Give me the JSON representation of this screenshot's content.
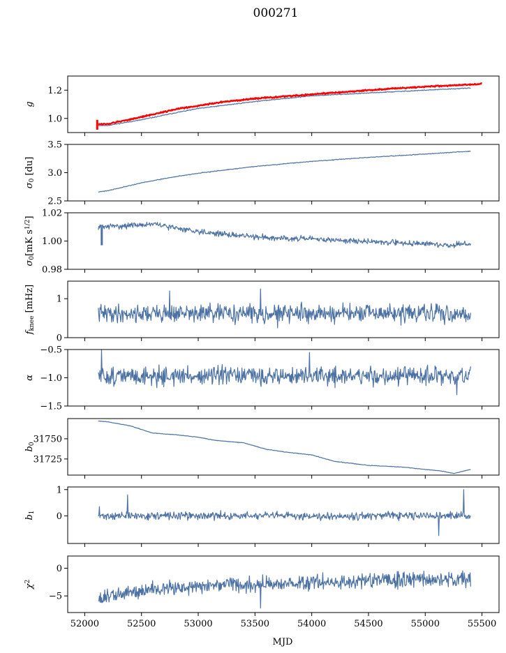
{
  "figure": {
    "title": "000271",
    "xlabel": "MJD"
  },
  "chart_data": [
    {
      "type": "line",
      "ylabel_tex": "g",
      "ylabel": [
        {
          "t": "g",
          "i": true
        }
      ],
      "xlim": [
        51850,
        55650
      ],
      "ylim": [
        0.9,
        1.3
      ],
      "yticks": [
        1.0,
        1.2
      ],
      "ytick_labels": [
        "1.0",
        "1.2"
      ],
      "series": [
        {
          "color": "#4c72a4",
          "x": [
            52120,
            52200,
            52500,
            52800,
            53000,
            53200,
            53500,
            54000,
            54500,
            55000,
            55400
          ],
          "y": [
            0.95,
            0.95,
            0.99,
            1.04,
            1.07,
            1.09,
            1.12,
            1.16,
            1.18,
            1.2,
            1.215
          ],
          "noise": 0.002,
          "seed": 11
        },
        {
          "color": "#ff0000",
          "x": [
            52120,
            52200,
            52500,
            52800,
            53000,
            53200,
            53500,
            54000,
            54500,
            55000,
            55400,
            55500
          ],
          "y": [
            0.96,
            0.96,
            1.01,
            1.065,
            1.09,
            1.115,
            1.14,
            1.17,
            1.2,
            1.225,
            1.24,
            1.245
          ],
          "noise": 0.003,
          "seed": 12,
          "spike": {
            "x": 52110,
            "y0": 0.92,
            "y1": 0.99
          }
        }
      ]
    },
    {
      "type": "line",
      "ylabel": [
        {
          "t": "σ",
          "i": true
        },
        {
          "t": "0",
          "sub": true
        },
        {
          "t": " [du]"
        }
      ],
      "xlim": [
        51850,
        55650
      ],
      "ylim": [
        2.5,
        3.5
      ],
      "yticks": [
        2.5,
        3.0,
        3.5
      ],
      "ytick_labels": [
        "2.5",
        "3.0",
        "3.5"
      ],
      "series": [
        {
          "color": "#4c72a4",
          "x": [
            52120,
            52200,
            52500,
            52800,
            53000,
            53500,
            54000,
            54500,
            55000,
            55400
          ],
          "y": [
            2.66,
            2.68,
            2.82,
            2.93,
            2.99,
            3.11,
            3.2,
            3.27,
            3.33,
            3.38
          ],
          "noise": 0.004,
          "seed": 21
        }
      ]
    },
    {
      "type": "line",
      "ylabel": [
        {
          "t": "σ",
          "i": true
        },
        {
          "t": "0",
          "sub": true
        },
        {
          "t": "[mK s"
        },
        {
          "t": "1/2",
          "sup": true
        },
        {
          "t": "]"
        }
      ],
      "xlim": [
        51850,
        55650
      ],
      "ylim": [
        0.98,
        1.02
      ],
      "yticks": [
        0.98,
        1.0,
        1.02
      ],
      "ytick_labels": [
        "0.98",
        "1.00",
        "1.02"
      ],
      "series": [
        {
          "color": "#4c72a4",
          "x": [
            52120,
            52400,
            52600,
            52900,
            53200,
            53500,
            53800,
            54100,
            54400,
            54700,
            55000,
            55200,
            55400
          ],
          "y": [
            1.01,
            1.011,
            1.012,
            1.008,
            1.005,
            1.003,
            1.002,
            1.001,
            1.0,
            0.999,
            0.998,
            0.997,
            0.998
          ],
          "noise": 0.0012,
          "seed": 31,
          "spike": {
            "x": 52150,
            "y0": 0.997,
            "y1": 1.01
          }
        }
      ]
    },
    {
      "type": "line",
      "ylabel": [
        {
          "t": "f",
          "i": true
        },
        {
          "t": "knee",
          "sub": true
        },
        {
          "t": " [mHz]"
        }
      ],
      "xlim": [
        51850,
        55650
      ],
      "ylim": [
        0,
        1.45
      ],
      "yticks": [
        0,
        1
      ],
      "ytick_labels": [
        "0",
        "1"
      ],
      "series": [
        {
          "color": "#4c72a4",
          "x": [
            52120,
            55400
          ],
          "y": [
            0.62,
            0.62
          ],
          "noise": 0.14,
          "seed": 41,
          "spikes": [
            {
              "x": 52750,
              "y": 1.2
            },
            {
              "x": 53550,
              "y": 1.25
            },
            {
              "x": 53700,
              "y": 0.25
            }
          ]
        }
      ]
    },
    {
      "type": "line",
      "ylabel": [
        {
          "t": "α",
          "i": true
        }
      ],
      "xlim": [
        51850,
        55650
      ],
      "ylim": [
        -1.5,
        -0.5
      ],
      "yticks": [
        -1.5,
        -1.0,
        -0.5
      ],
      "ytick_labels": [
        "−1.5",
        "−1.0",
        "−0.5"
      ],
      "series": [
        {
          "color": "#4c72a4",
          "x": [
            52120,
            55400
          ],
          "y": [
            -0.97,
            -0.97
          ],
          "noise": 0.1,
          "seed": 51,
          "spikes": [
            {
              "x": 52150,
              "y": -0.5
            },
            {
              "x": 53980,
              "y": -0.55
            },
            {
              "x": 55280,
              "y": -1.3
            }
          ]
        }
      ]
    },
    {
      "type": "line",
      "ylabel": [
        {
          "t": "b",
          "i": true
        },
        {
          "t": "0",
          "sub": true
        }
      ],
      "xlim": [
        51850,
        55650
      ],
      "ylim": [
        31705,
        31775
      ],
      "yticks": [
        31725,
        31750
      ],
      "ytick_labels": [
        "31725",
        "31750"
      ],
      "series": [
        {
          "color": "#4c72a4",
          "x": [
            52120,
            52200,
            52400,
            52600,
            52800,
            53000,
            53150,
            53400,
            53600,
            53800,
            54000,
            54200,
            54500,
            54800,
            55000,
            55150,
            55250,
            55400
          ],
          "y": [
            31772,
            31771,
            31766,
            31757,
            31755,
            31752,
            31748,
            31745,
            31737,
            31733,
            31730,
            31722,
            31717,
            31715,
            31712,
            31710,
            31707,
            31712
          ],
          "noise": 0.2,
          "seed": 61
        }
      ]
    },
    {
      "type": "line",
      "ylabel": [
        {
          "t": "b",
          "i": true
        },
        {
          "t": "1",
          "sub": true
        }
      ],
      "xlim": [
        51850,
        55650
      ],
      "ylim": [
        -1.05,
        1.1
      ],
      "yticks": [
        0,
        1
      ],
      "ytick_labels": [
        "0",
        "1"
      ],
      "series": [
        {
          "color": "#4c72a4",
          "x": [
            52120,
            55400
          ],
          "y": [
            0.0,
            0.0
          ],
          "noise": 0.09,
          "seed": 71,
          "spikes": [
            {
              "x": 52130,
              "y": 0.35
            },
            {
              "x": 52380,
              "y": 0.8
            },
            {
              "x": 55120,
              "y": -0.75
            },
            {
              "x": 55340,
              "y": 1.0
            }
          ]
        }
      ]
    },
    {
      "type": "line",
      "ylabel": [
        {
          "t": "χ",
          "i": true
        },
        {
          "t": "2",
          "sup": true
        }
      ],
      "xlim": [
        51850,
        55650
      ],
      "ylim": [
        -8,
        2.2
      ],
      "yticks": [
        -5,
        0
      ],
      "ytick_labels": [
        "−5",
        "0"
      ],
      "xticks": [
        52000,
        52500,
        53000,
        53500,
        54000,
        54500,
        55000,
        55500
      ],
      "xtick_labels": [
        "52000",
        "52500",
        "53000",
        "53500",
        "54000",
        "54500",
        "55000",
        "55500"
      ],
      "series": [
        {
          "color": "#4c72a4",
          "x": [
            52120,
            52500,
            53000,
            53500,
            54000,
            54500,
            55000,
            55400
          ],
          "y": [
            -5.5,
            -4.0,
            -3.2,
            -2.9,
            -2.6,
            -2.3,
            -2.0,
            -2.0
          ],
          "noise": 0.85,
          "seed": 81,
          "spikes": [
            {
              "x": 53550,
              "y": -7.2
            }
          ]
        }
      ]
    }
  ]
}
